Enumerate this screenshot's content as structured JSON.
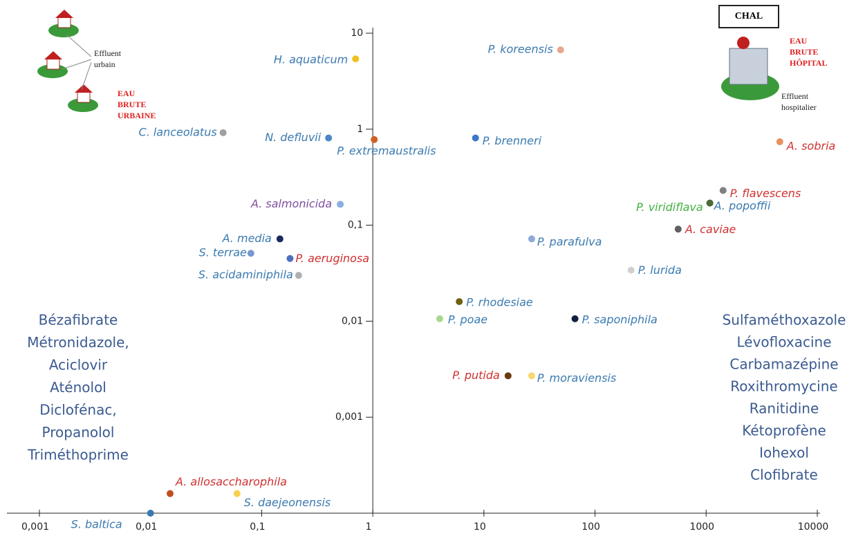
{
  "chart_data": {
    "type": "scatter",
    "xscale": "log",
    "yscale": "log",
    "xlim": [
      0.001,
      10000
    ],
    "ylim": [
      0.0001,
      10
    ],
    "xticks": [
      {
        "value": 0.001,
        "label": "0,001"
      },
      {
        "value": 0.01,
        "label": "0,01"
      },
      {
        "value": 0.1,
        "label": "0,1"
      },
      1,
      10,
      100,
      1000,
      10000
    ],
    "yticks": [
      {
        "value": 0.001,
        "label": "0,001"
      },
      {
        "value": 0.01,
        "label": "0,01"
      },
      {
        "value": 0.1,
        "label": "0,1"
      },
      1,
      10
    ],
    "series": [
      {
        "name": "H. aquaticum",
        "color": "#f0c020",
        "label_color": "#3a7ab0",
        "x": [
          0.7
        ],
        "values": [
          5.4
        ]
      },
      {
        "name": "P. koreensis",
        "color": "#e8a888",
        "label_color": "#3a7ab0",
        "x": [
          49
        ],
        "values": [
          6.7
        ]
      },
      {
        "name": "C. lanceolatus",
        "color": "#a0a0a0",
        "label_color": "#3a7ab0",
        "x": [
          0.045
        ],
        "values": [
          0.92
        ]
      },
      {
        "name": "N. defluvii",
        "color": "#4a86c8",
        "label_color": "#3a7ab0",
        "x": [
          0.4
        ],
        "values": [
          0.81
        ]
      },
      {
        "name": "P. extremaustralis",
        "color": "#d06020",
        "label_color": "#3a7ab0",
        "x": [
          1.03
        ],
        "values": [
          0.78
        ]
      },
      {
        "name": "P. brenneri",
        "color": "#3a78c8",
        "label_color": "#3a7ab0",
        "x": [
          8.4
        ],
        "values": [
          0.81
        ]
      },
      {
        "name": "A. sobria",
        "color": "#e89060",
        "label_color": "#d03030",
        "x": [
          4600
        ],
        "values": [
          0.74
        ]
      },
      {
        "name": "A. salmonicida",
        "color": "#8ab0e0",
        "label_color": "#8050a0",
        "x": [
          0.51
        ],
        "values": [
          0.165
        ]
      },
      {
        "name": "P. flavescens",
        "color": "#808080",
        "label_color": "#d03030",
        "x": [
          1420
        ],
        "values": [
          0.23
        ]
      },
      {
        "name": "P. viridiflava",
        "color": "#4a6a3a",
        "label_color": "#40b040",
        "x": [
          1080
        ],
        "values": [
          0.17
        ]
      },
      {
        "name": "A. popoffii",
        "color": "#4a6a3a",
        "label_color": "#3a7ab0",
        "x": [
          1080
        ],
        "values": [
          0.17
        ]
      },
      {
        "name": "A. caviae",
        "color": "#606060",
        "label_color": "#d03030",
        "x": [
          560
        ],
        "values": [
          0.091
        ]
      },
      {
        "name": "A. media",
        "color": "#1a2a60",
        "label_color": "#3a7ab0",
        "x": [
          0.146
        ],
        "values": [
          0.072
        ]
      },
      {
        "name": "P. parafulva",
        "color": "#90a8d8",
        "label_color": "#3a7ab0",
        "x": [
          26.9
        ],
        "values": [
          0.072
        ]
      },
      {
        "name": "S. terrae",
        "color": "#7a98d0",
        "label_color": "#3a7ab0",
        "x": [
          0.08
        ],
        "values": [
          0.051
        ]
      },
      {
        "name": "P. aeruginosa",
        "color": "#5070c0",
        "label_color": "#d03030",
        "x": [
          0.18
        ],
        "values": [
          0.045
        ]
      },
      {
        "name": "S. acidaminiphila",
        "color": "#b0b0b0",
        "label_color": "#3a7ab0",
        "x": [
          0.215
        ],
        "values": [
          0.03
        ]
      },
      {
        "name": "P. lurida",
        "color": "#d0d0d0",
        "label_color": "#3a7ab0",
        "x": [
          211
        ],
        "values": [
          0.034
        ]
      },
      {
        "name": "P. rhodesiae",
        "color": "#706010",
        "label_color": "#3a7ab0",
        "x": [
          6.0
        ],
        "values": [
          0.016
        ]
      },
      {
        "name": "P. poae",
        "color": "#a8d890",
        "label_color": "#3a7ab0",
        "x": [
          4.0
        ],
        "values": [
          0.0106
        ]
      },
      {
        "name": "P. saponiphila",
        "color": "#102040",
        "label_color": "#3a7ab0",
        "x": [
          66
        ],
        "values": [
          0.0106
        ]
      },
      {
        "name": "P. putida",
        "color": "#6a3a10",
        "label_color": "#d03030",
        "x": [
          16.5
        ],
        "values": [
          0.0027
        ]
      },
      {
        "name": "P. moraviensis",
        "color": "#f8d870",
        "label_color": "#3a7ab0",
        "x": [
          26.9
        ],
        "values": [
          0.0027
        ]
      },
      {
        "name": "A. allosaccharophila",
        "color": "#c05020",
        "label_color": "#d03030",
        "x": [
          0.015
        ],
        "values": [
          0.00016
        ]
      },
      {
        "name": "S. daejeonensis",
        "color": "#f8d050",
        "label_color": "#3a7ab0",
        "x": [
          0.06
        ],
        "values": [
          0.00016
        ]
      },
      {
        "name": "S. baltica",
        "color": "#3a7ab0",
        "label_color": "#3a7ab0",
        "x": [
          0.01
        ],
        "values": [
          0.0001
        ]
      }
    ],
    "left_compounds": [
      "Bézafibrate",
      "Métronidazole,",
      "Aciclovir",
      "Aténolol",
      "Diclofénac,",
      "Propanolol",
      "Triméthoprime"
    ],
    "right_compounds": [
      "Sulfaméthoxazole",
      "Lévofloxacine",
      "Carbamazépine",
      "Roxithromycine",
      "Ranitidine",
      "Kétoprofène",
      "Iohexol",
      "Clofibrate"
    ],
    "urban_effluent": "Effluent urbain",
    "urban_title": "EAU BRUTE URBAINE",
    "hospital_name": "CHAL",
    "hospital_title": "EAU BRUTE HÔPITAL",
    "hospital_effluent": "Effluent hospitalier"
  }
}
